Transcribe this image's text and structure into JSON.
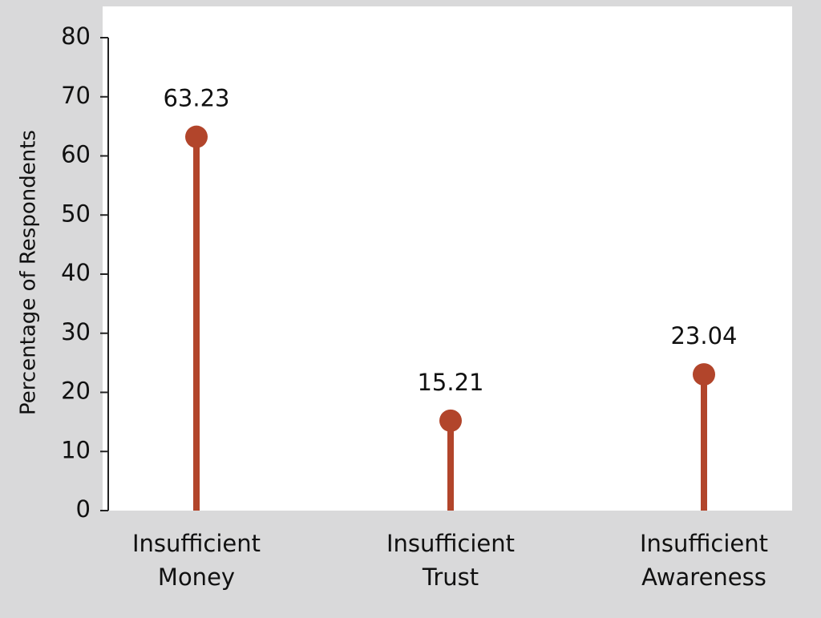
{
  "chart_data": {
    "type": "lollipop",
    "y_label": "Percentage of Respondents",
    "categories": [
      "Insufficient Money",
      "Insufficient Trust",
      "Insufficient Awareness"
    ],
    "values": [
      63.23,
      15.21,
      23.04
    ],
    "color": "#b2452b",
    "ylim": [
      0,
      80
    ],
    "yticks": [
      0,
      10,
      20,
      30,
      40,
      50,
      60,
      70,
      80
    ]
  }
}
